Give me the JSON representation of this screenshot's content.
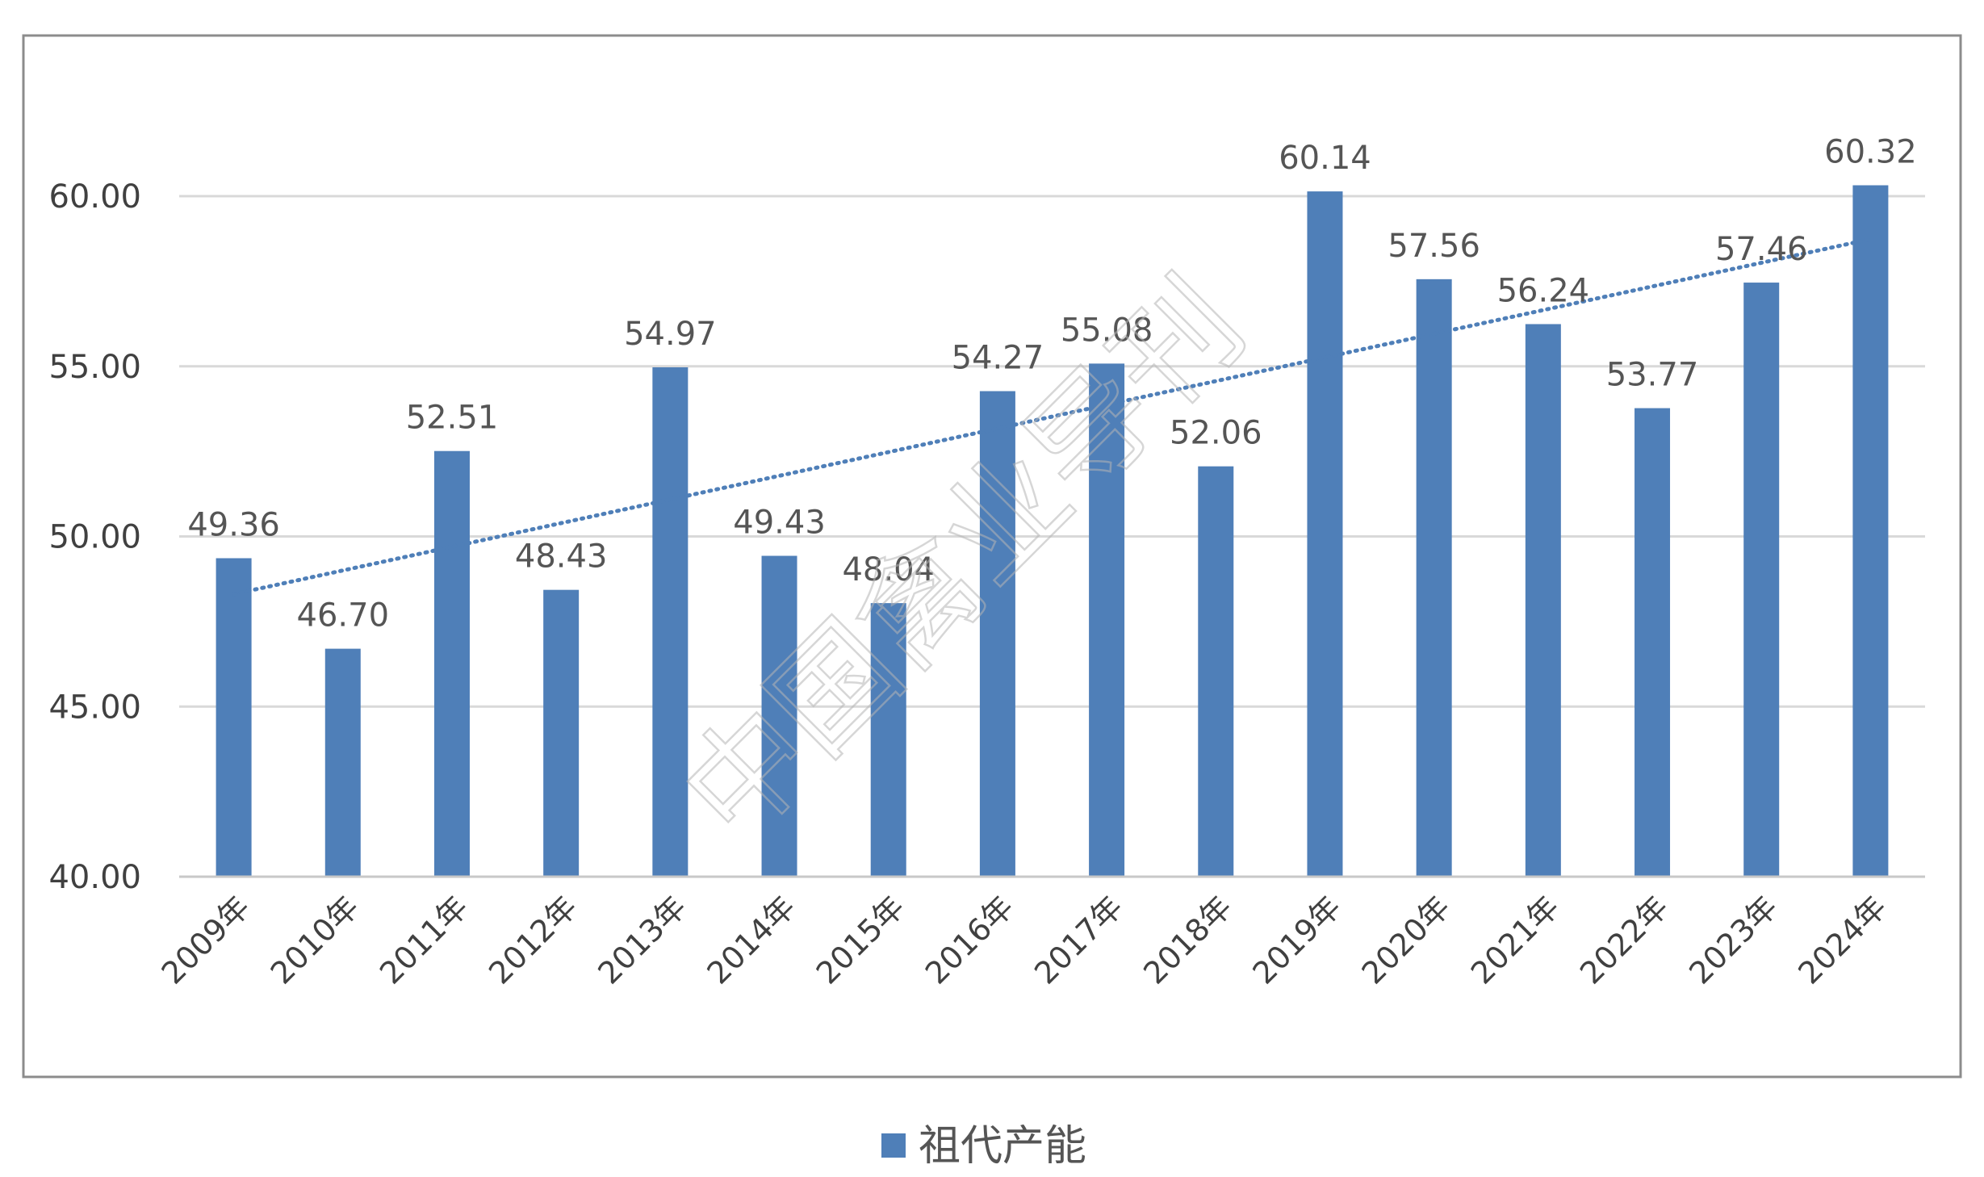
{
  "chart_data": {
    "type": "bar",
    "categories": [
      "2009年",
      "2010年",
      "2011年",
      "2012年",
      "2013年",
      "2014年",
      "2015年",
      "2016年",
      "2017年",
      "2018年",
      "2019年",
      "2020年",
      "2021年",
      "2022年",
      "2023年",
      "2024年"
    ],
    "series": [
      {
        "name": "祖代产能",
        "values": [
          49.36,
          46.7,
          52.51,
          48.43,
          54.97,
          49.43,
          48.04,
          54.27,
          55.08,
          52.06,
          60.14,
          57.56,
          56.24,
          53.77,
          57.46,
          60.32
        ],
        "value_labels": [
          "49.36",
          "46.70",
          "52.51",
          "48.43",
          "54.97",
          "49.43",
          "48.04",
          "54.27",
          "55.08",
          "52.06",
          "60.14",
          "57.56",
          "56.24",
          "53.77",
          "57.46",
          "60.32"
        ]
      }
    ],
    "yticks": [
      "40.00",
      "45.00",
      "50.00",
      "55.00",
      "60.00"
    ],
    "ylim": [
      40,
      65
    ],
    "grid": true,
    "trendline": "linear",
    "trendline_style": "dotted",
    "legend": "bottom-center",
    "title": "",
    "xlabel": "",
    "ylabel": ""
  },
  "watermark": {
    "text": "中国禽业导刊"
  },
  "colors": {
    "bar": "#4f7fb8",
    "trendline": "#4f7fb8",
    "grid": "#d9d9d9",
    "frame": "#8c8c8c"
  }
}
